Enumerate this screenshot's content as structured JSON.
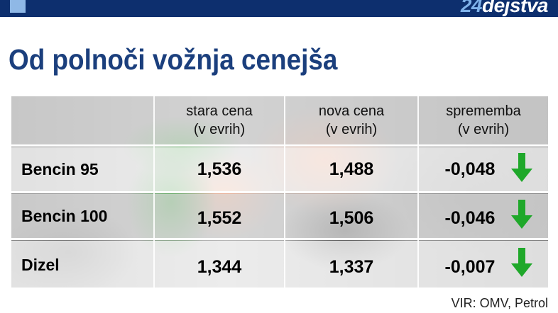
{
  "brand": {
    "number": "24",
    "word": "dejstva"
  },
  "title": "Od polnoči vožnja cenejša",
  "table": {
    "headers": [
      {
        "line1": "",
        "line2": ""
      },
      {
        "line1": "stara cena",
        "line2": "(v evrih)"
      },
      {
        "line1": "nova cena",
        "line2": "(v evrih)"
      },
      {
        "line1": "sprememba",
        "line2": "(v evrih)"
      }
    ],
    "rows": [
      {
        "fuel": "Bencin 95",
        "old": "1,536",
        "new": "1,488",
        "change": "-0,048",
        "trend": "down-arrow-icon"
      },
      {
        "fuel": "Bencin 100",
        "old": "1,552",
        "new": "1,506",
        "change": "-0,046",
        "trend": "down-arrow-icon"
      },
      {
        "fuel": "Dizel",
        "old": "1,344",
        "new": "1,337",
        "change": "-0,007",
        "trend": "down-arrow-icon"
      }
    ]
  },
  "source": "VIR: OMV, Petrol",
  "colors": {
    "header_bar": "#0d2f6e",
    "title": "#1b3f7d",
    "arrow": "#1fa82a"
  }
}
